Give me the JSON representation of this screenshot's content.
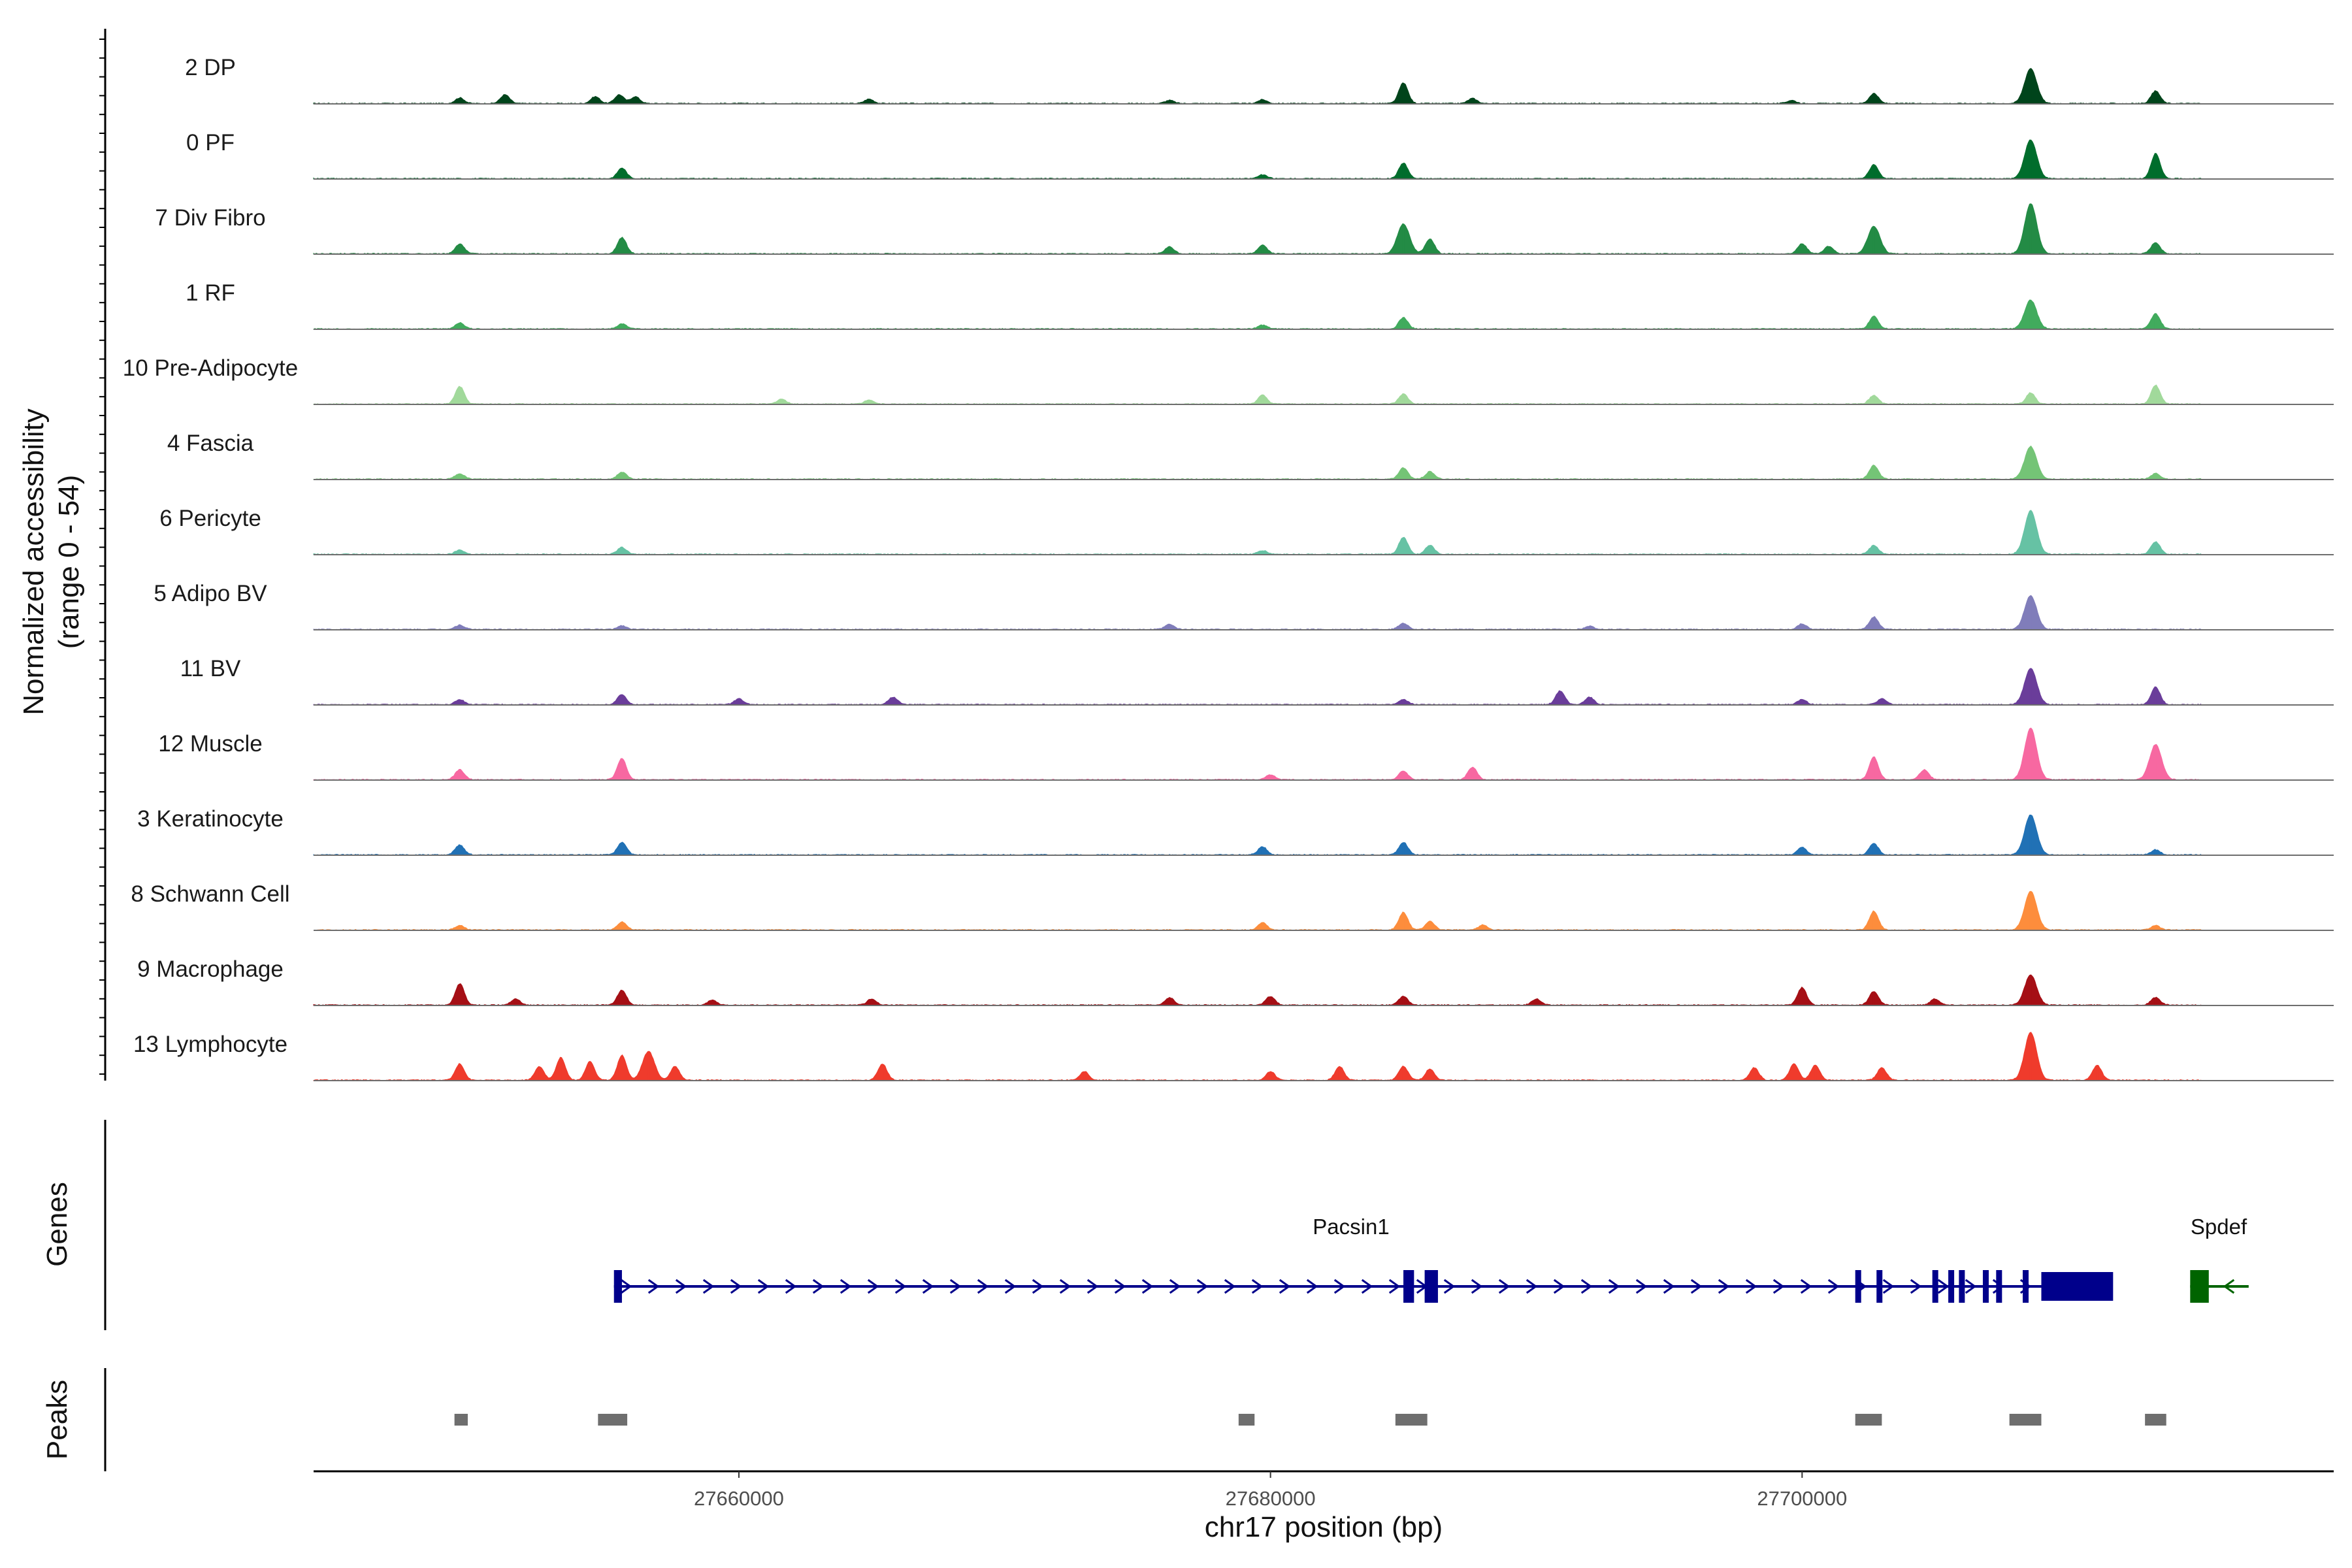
{
  "chart_data": {
    "type": "area",
    "title": "",
    "ylabel": "Normalized accessibility",
    "ylabel_range": "(range 0 - 54)",
    "ylim": [
      0,
      54
    ],
    "xlabel": "chr17 position (bp)",
    "xlim": [
      27644000,
      27720000
    ],
    "x_ticks": [
      27660000,
      27680000,
      27700000
    ],
    "x_tick_labels": [
      "27660000",
      "27680000",
      "27700000"
    ],
    "coverage_start": 27644000,
    "coverage_end": 27715000,
    "tracks": [
      {
        "name": "2 DP",
        "color": "#00441B",
        "peaks": [
          [
            27649500,
            9
          ],
          [
            27651200,
            14
          ],
          [
            27654600,
            11
          ],
          [
            27655500,
            14
          ],
          [
            27656100,
            11
          ],
          [
            27664900,
            7
          ],
          [
            27676200,
            5
          ],
          [
            27679700,
            6
          ],
          [
            27685000,
            33
          ],
          [
            27687600,
            8
          ],
          [
            27699600,
            5
          ],
          [
            27702700,
            16
          ],
          [
            27708600,
            56
          ],
          [
            27713300,
            20
          ]
        ]
      },
      {
        "name": "0 PF",
        "color": "#006D2C",
        "peaks": [
          [
            27655600,
            17
          ],
          [
            27679700,
            6
          ],
          [
            27685000,
            25
          ],
          [
            27702700,
            22
          ],
          [
            27708600,
            62
          ],
          [
            27713300,
            40
          ]
        ]
      },
      {
        "name": "7 Div Fibro",
        "color": "#238B45",
        "peaks": [
          [
            27649500,
            16
          ],
          [
            27655600,
            26
          ],
          [
            27676200,
            11
          ],
          [
            27679700,
            14
          ],
          [
            27685000,
            48
          ],
          [
            27686000,
            24
          ],
          [
            27700000,
            16
          ],
          [
            27701000,
            12
          ],
          [
            27702700,
            44
          ],
          [
            27708600,
            80
          ],
          [
            27713300,
            18
          ]
        ]
      },
      {
        "name": "1 RF",
        "color": "#41AB5D",
        "peaks": [
          [
            27649500,
            10
          ],
          [
            27655600,
            8
          ],
          [
            27679700,
            6
          ],
          [
            27685000,
            18
          ],
          [
            27702700,
            20
          ],
          [
            27708600,
            46
          ],
          [
            27713300,
            24
          ]
        ]
      },
      {
        "name": "10 Pre-Adipocyte",
        "color": "#A1D99B",
        "peaks": [
          [
            27649500,
            28
          ],
          [
            27661600,
            8
          ],
          [
            27664900,
            7
          ],
          [
            27679700,
            14
          ],
          [
            27685000,
            16
          ],
          [
            27702700,
            14
          ],
          [
            27708600,
            18
          ],
          [
            27713300,
            30
          ]
        ]
      },
      {
        "name": "4 Fascia",
        "color": "#74C476",
        "peaks": [
          [
            27649500,
            9
          ],
          [
            27655600,
            11
          ],
          [
            27685000,
            18
          ],
          [
            27686000,
            12
          ],
          [
            27702700,
            22
          ],
          [
            27708600,
            52
          ],
          [
            27713300,
            9
          ]
        ]
      },
      {
        "name": "6 Pericyte",
        "color": "#66C2A4",
        "peaks": [
          [
            27649500,
            7
          ],
          [
            27655600,
            11
          ],
          [
            27679700,
            6
          ],
          [
            27685000,
            27
          ],
          [
            27686000,
            14
          ],
          [
            27702700,
            14
          ],
          [
            27708600,
            70
          ],
          [
            27713300,
            20
          ]
        ]
      },
      {
        "name": "5 Adipo BV",
        "color": "#807DBA",
        "peaks": [
          [
            27649500,
            7
          ],
          [
            27655600,
            6
          ],
          [
            27676200,
            8
          ],
          [
            27685000,
            10
          ],
          [
            27692000,
            5
          ],
          [
            27700000,
            9
          ],
          [
            27702700,
            20
          ],
          [
            27708600,
            54
          ]
        ]
      },
      {
        "name": "11 BV",
        "color": "#6A3D9A",
        "peaks": [
          [
            27649500,
            8
          ],
          [
            27655600,
            16
          ],
          [
            27660000,
            9
          ],
          [
            27665800,
            12
          ],
          [
            27685000,
            8
          ],
          [
            27690900,
            22
          ],
          [
            27692000,
            12
          ],
          [
            27700000,
            8
          ],
          [
            27703000,
            9
          ],
          [
            27708600,
            58
          ],
          [
            27713300,
            28
          ]
        ]
      },
      {
        "name": "12 Muscle",
        "color": "#F768A1",
        "peaks": [
          [
            27649500,
            16
          ],
          [
            27655600,
            34
          ],
          [
            27680000,
            8
          ],
          [
            27685000,
            14
          ],
          [
            27687600,
            20
          ],
          [
            27702700,
            36
          ],
          [
            27704600,
            16
          ],
          [
            27708600,
            82
          ],
          [
            27713300,
            56
          ]
        ]
      },
      {
        "name": "3 Keratinocyte",
        "color": "#2171B5",
        "peaks": [
          [
            27649500,
            16
          ],
          [
            27655600,
            20
          ],
          [
            27679700,
            13
          ],
          [
            27685000,
            20
          ],
          [
            27700000,
            12
          ],
          [
            27702700,
            18
          ],
          [
            27708600,
            64
          ],
          [
            27713300,
            8
          ]
        ]
      },
      {
        "name": "8 Schwann Cell",
        "color": "#FD8D3C",
        "peaks": [
          [
            27649500,
            7
          ],
          [
            27655600,
            13
          ],
          [
            27679700,
            12
          ],
          [
            27685000,
            28
          ],
          [
            27686000,
            14
          ],
          [
            27688000,
            8
          ],
          [
            27702700,
            30
          ],
          [
            27708600,
            62
          ],
          [
            27713300,
            7
          ]
        ]
      },
      {
        "name": "9 Macrophage",
        "color": "#A50F15",
        "peaks": [
          [
            27649500,
            34
          ],
          [
            27651600,
            10
          ],
          [
            27655600,
            24
          ],
          [
            27659000,
            8
          ],
          [
            27665000,
            10
          ],
          [
            27676200,
            12
          ],
          [
            27680000,
            14
          ],
          [
            27685000,
            14
          ],
          [
            27690000,
            10
          ],
          [
            27700000,
            28
          ],
          [
            27702700,
            22
          ],
          [
            27705000,
            10
          ],
          [
            27708600,
            48
          ],
          [
            27713300,
            12
          ]
        ]
      },
      {
        "name": "13 Lymphocyte",
        "color": "#EF3B2C",
        "peaks": [
          [
            27649500,
            26
          ],
          [
            27652500,
            22
          ],
          [
            27653300,
            36
          ],
          [
            27654400,
            30
          ],
          [
            27655600,
            40
          ],
          [
            27656600,
            46
          ],
          [
            27657600,
            22
          ],
          [
            27665400,
            26
          ],
          [
            27673000,
            14
          ],
          [
            27680000,
            14
          ],
          [
            27682600,
            22
          ],
          [
            27685000,
            22
          ],
          [
            27686000,
            18
          ],
          [
            27698200,
            20
          ],
          [
            27699700,
            26
          ],
          [
            27700500,
            24
          ],
          [
            27703000,
            20
          ],
          [
            27708600,
            76
          ],
          [
            27711100,
            24
          ]
        ]
      }
    ],
    "genes_track_label": "Genes",
    "peaks_track_label": "Peaks",
    "genes": [
      {
        "name": "Pacsin1",
        "strand": "+",
        "start": 27655300,
        "end": 27711200,
        "color": "#00008B",
        "exons": [
          [
            27655300,
            27655600
          ],
          [
            27685000,
            27685400
          ],
          [
            27685800,
            27686300
          ],
          [
            27702000,
            27702200
          ],
          [
            27702800,
            27703000
          ],
          [
            27704900,
            27705100
          ],
          [
            27705500,
            27705700
          ],
          [
            27705900,
            27706100
          ],
          [
            27706800,
            27707000
          ],
          [
            27707300,
            27707500
          ],
          [
            27708300,
            27708500
          ],
          [
            27709000,
            27711700
          ]
        ]
      },
      {
        "name": "Spdef",
        "strand": "-",
        "start": 27714600,
        "end": 27716800,
        "color": "#006400",
        "exons": [
          [
            27714600,
            27715300
          ]
        ]
      }
    ],
    "peak_regions": [
      [
        27649300,
        27649800
      ],
      [
        27654700,
        27655800
      ],
      [
        27678800,
        27679400
      ],
      [
        27684700,
        27685900
      ],
      [
        27702000,
        27703000
      ],
      [
        27707800,
        27709000
      ],
      [
        27712900,
        27713700
      ]
    ]
  }
}
